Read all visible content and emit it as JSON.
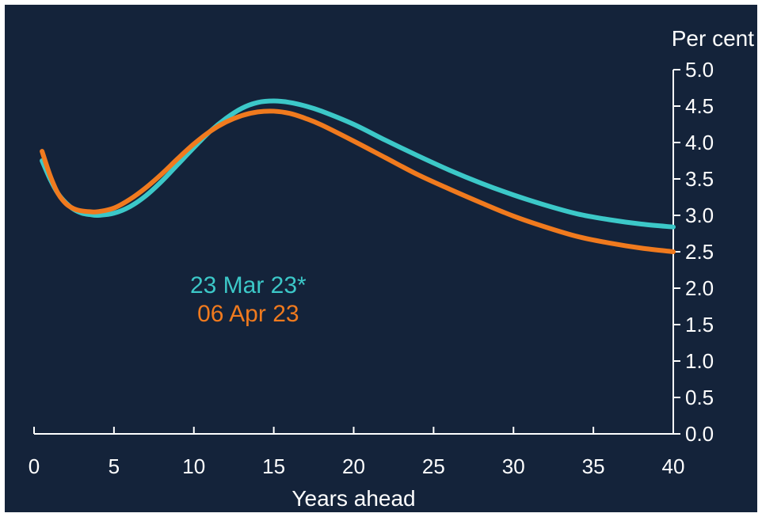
{
  "chart_data": {
    "type": "line",
    "xlabel": "Years ahead",
    "ylabel": "Per cent",
    "xlim": [
      0,
      40
    ],
    "ylim": [
      0,
      5
    ],
    "xticks": [
      0,
      5,
      10,
      15,
      20,
      25,
      30,
      35,
      40
    ],
    "yticks": [
      "0.0",
      "0.5",
      "1.0",
      "1.5",
      "2.0",
      "2.5",
      "3.0",
      "3.5",
      "4.0",
      "4.5",
      "5.0"
    ],
    "grid": false,
    "legend_placement": "center",
    "series": [
      {
        "name": "23 Mar 23*",
        "color": "#3cc8c8",
        "x": [
          0.5,
          1,
          1.5,
          2,
          2.5,
          3,
          3.5,
          4,
          5,
          6,
          7,
          8,
          9,
          10,
          11,
          12,
          13,
          14,
          15,
          16,
          17,
          18,
          20,
          22,
          24,
          26,
          28,
          30,
          32,
          34,
          36,
          38,
          40
        ],
        "y": [
          3.75,
          3.5,
          3.3,
          3.17,
          3.08,
          3.03,
          3.01,
          3.0,
          3.03,
          3.12,
          3.27,
          3.47,
          3.7,
          3.93,
          4.15,
          4.33,
          4.47,
          4.55,
          4.57,
          4.55,
          4.5,
          4.43,
          4.25,
          4.03,
          3.82,
          3.62,
          3.44,
          3.28,
          3.14,
          3.02,
          2.94,
          2.88,
          2.84
        ]
      },
      {
        "name": "06 Apr 23",
        "color": "#f07a1e",
        "x": [
          0.5,
          1,
          1.5,
          2,
          2.5,
          3,
          3.5,
          4,
          5,
          6,
          7,
          8,
          9,
          10,
          11,
          12,
          13,
          14,
          15,
          16,
          17,
          18,
          20,
          22,
          24,
          26,
          28,
          30,
          32,
          34,
          36,
          38,
          40
        ],
        "y": [
          3.88,
          3.55,
          3.3,
          3.16,
          3.09,
          3.06,
          3.05,
          3.05,
          3.1,
          3.22,
          3.38,
          3.57,
          3.78,
          3.98,
          4.15,
          4.28,
          4.37,
          4.42,
          4.43,
          4.4,
          4.33,
          4.24,
          4.02,
          3.79,
          3.56,
          3.36,
          3.17,
          2.99,
          2.84,
          2.71,
          2.62,
          2.55,
          2.5
        ]
      }
    ]
  }
}
